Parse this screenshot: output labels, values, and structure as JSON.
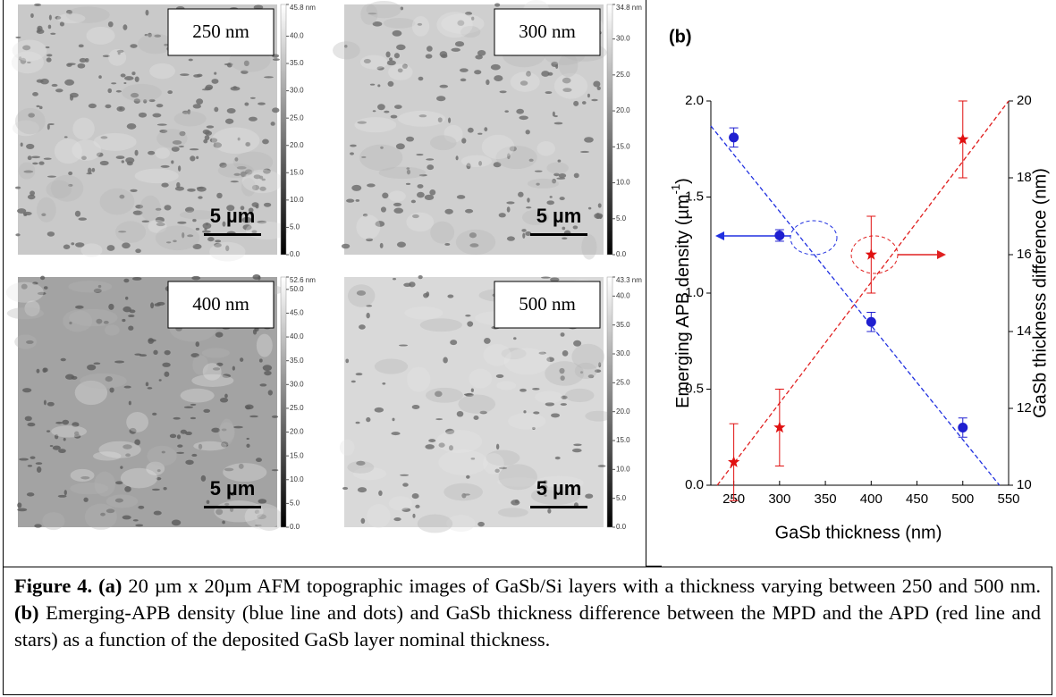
{
  "panel_a": {
    "label": "(a)",
    "images": [
      {
        "label": "250 nm",
        "scale_bar": "5 µm",
        "colorbar": [
          {
            "value": 45.8,
            "label": "45.8 nm"
          },
          {
            "value": 40,
            "label": "40.0"
          },
          {
            "value": 35,
            "label": "35.0"
          },
          {
            "value": 30,
            "label": "30.0"
          },
          {
            "value": 25,
            "label": "25.0"
          },
          {
            "value": 20,
            "label": "20.0"
          },
          {
            "value": 15,
            "label": "15.0"
          },
          {
            "value": 10,
            "label": "10.0"
          },
          {
            "value": 5,
            "label": "5.0"
          },
          {
            "value": 0,
            "label": "0.0"
          }
        ]
      },
      {
        "label": "300 nm",
        "scale_bar": "5 µm",
        "colorbar": [
          {
            "value": 34.8,
            "label": "34.8 nm"
          },
          {
            "value": 30,
            "label": "30.0"
          },
          {
            "value": 25,
            "label": "25.0"
          },
          {
            "value": 20,
            "label": "20.0"
          },
          {
            "value": 15,
            "label": "15.0"
          },
          {
            "value": 10,
            "label": "10.0"
          },
          {
            "value": 5,
            "label": "5.0"
          },
          {
            "value": 0,
            "label": "0.0"
          }
        ]
      },
      {
        "label": "400 nm",
        "scale_bar": "5 µm",
        "colorbar": [
          {
            "value": 52.6,
            "label": "52.6 nm"
          },
          {
            "value": 50,
            "label": "50.0"
          },
          {
            "value": 45,
            "label": "45.0"
          },
          {
            "value": 40,
            "label": "40.0"
          },
          {
            "value": 35,
            "label": "35.0"
          },
          {
            "value": 30,
            "label": "30.0"
          },
          {
            "value": 25,
            "label": "25.0"
          },
          {
            "value": 20,
            "label": "20.0"
          },
          {
            "value": 15,
            "label": "15.0"
          },
          {
            "value": 10,
            "label": "10.0"
          },
          {
            "value": 5,
            "label": "5.0"
          },
          {
            "value": 0,
            "label": "0.0"
          }
        ]
      },
      {
        "label": "500 nm",
        "scale_bar": "5 µm",
        "colorbar": [
          {
            "value": 43.3,
            "label": "43.3 nm"
          },
          {
            "value": 40,
            "label": "40.0"
          },
          {
            "value": 35,
            "label": "35.0"
          },
          {
            "value": 30,
            "label": "30.0"
          },
          {
            "value": 25,
            "label": "25.0"
          },
          {
            "value": 20,
            "label": "20.0"
          },
          {
            "value": 15,
            "label": "15.0"
          },
          {
            "value": 10,
            "label": "10.0"
          },
          {
            "value": 5,
            "label": "5.0"
          },
          {
            "value": 0,
            "label": "0.0"
          }
        ]
      }
    ]
  },
  "chart_data": {
    "type": "scatter",
    "panel_label": "(b)",
    "xlabel": "GaSb thickness (nm)",
    "ylabel": [
      "Emerging APB density (µm",
      "-1",
      ")"
    ],
    "y2label": "GaSb thickness difference (nm)",
    "xlim": [
      225,
      550
    ],
    "xticks": [
      250,
      300,
      350,
      400,
      450,
      500,
      550
    ],
    "ylim": [
      0,
      2
    ],
    "yticks": [
      {
        "value": 0,
        "label": "0.0"
      },
      {
        "value": 0.5,
        "label": "0.5"
      },
      {
        "value": 1,
        "label": "1.0"
      },
      {
        "value": 1.5,
        "label": "1.5"
      },
      {
        "value": 2,
        "label": "2.0"
      }
    ],
    "y2lim": [
      10,
      20
    ],
    "y2ticks": [
      10,
      12,
      14,
      16,
      18,
      20
    ],
    "series": [
      {
        "color": "#1f1fd0",
        "marker": "circle",
        "x": [
          250,
          300,
          400,
          500
        ],
        "values": [
          1.81,
          1.3,
          0.85,
          0.3
        ],
        "errors": [
          0.05,
          0.03,
          0.05,
          0.05
        ]
      },
      {
        "color": "#e01010",
        "marker": "star",
        "axis": "y2",
        "x": [
          250,
          300,
          400,
          500
        ],
        "values": [
          10.6,
          11.5,
          16,
          19
        ],
        "errors": [
          1,
          1,
          1,
          1
        ]
      }
    ],
    "fits": [
      {
        "color": "#2030e0",
        "x": [
          225,
          540
        ],
        "values": [
          1.87,
          0
        ]
      },
      {
        "color": "#e02020",
        "axis": "y2",
        "x": [
          232,
          550
        ],
        "values": [
          10,
          20
        ]
      }
    ]
  },
  "caption": {
    "label": "Figure 4.",
    "a": "(a)",
    "text_a": "20 µm x 20µm AFM topographic images of GaSb/Si layers with a thickness varying between 250 and 500 nm.",
    "b": "(b)",
    "text_b": "Emerging-APB density (blue line and dots) and GaSb thickness difference between the MPD and the APD (red line and stars) as a function of the deposited GaSb layer nominal thickness."
  }
}
